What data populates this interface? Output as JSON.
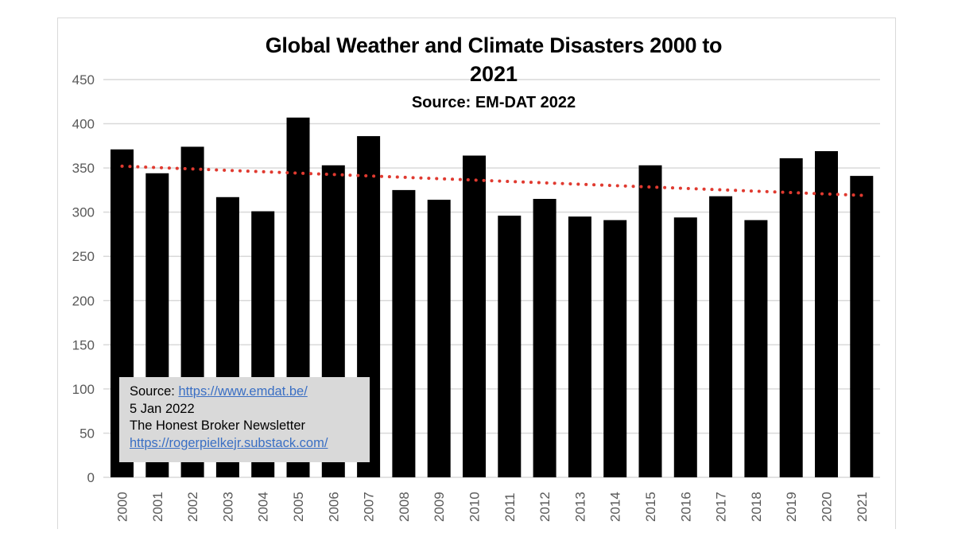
{
  "chart_data": {
    "type": "bar",
    "title": "Global Weather and Climate Disasters 2000 to 2021",
    "title_line1": "Global Weather and Climate Disasters 2000 to",
    "title_line2": "2021",
    "subtitle": "Source: EM-DAT 2022",
    "xlabel": "",
    "ylabel": "",
    "ylim": [
      0,
      450
    ],
    "yticks": [
      0,
      50,
      100,
      150,
      200,
      250,
      300,
      350,
      400,
      450
    ],
    "grid": true,
    "categories": [
      "2000",
      "2001",
      "2002",
      "2003",
      "2004",
      "2005",
      "2006",
      "2007",
      "2008",
      "2009",
      "2010",
      "2011",
      "2012",
      "2013",
      "2014",
      "2015",
      "2016",
      "2017",
      "2018",
      "2019",
      "2020",
      "2021"
    ],
    "values": [
      371,
      344,
      374,
      317,
      301,
      407,
      353,
      386,
      325,
      314,
      364,
      296,
      315,
      295,
      291,
      353,
      294,
      318,
      291,
      361,
      369,
      341
    ],
    "bar_color": "#000000",
    "trendline": {
      "type": "linear",
      "style": "dotted",
      "color": "#e03a30",
      "start_value": 352,
      "end_value": 319
    },
    "annotation": {
      "source_label": "Source: ",
      "source_link": "https://www.emdat.be/",
      "date": "5 Jan 2022",
      "newsletter": "The Honest Broker Newsletter",
      "newsletter_link": "https://rogerpielkejr.substack.com/"
    }
  }
}
